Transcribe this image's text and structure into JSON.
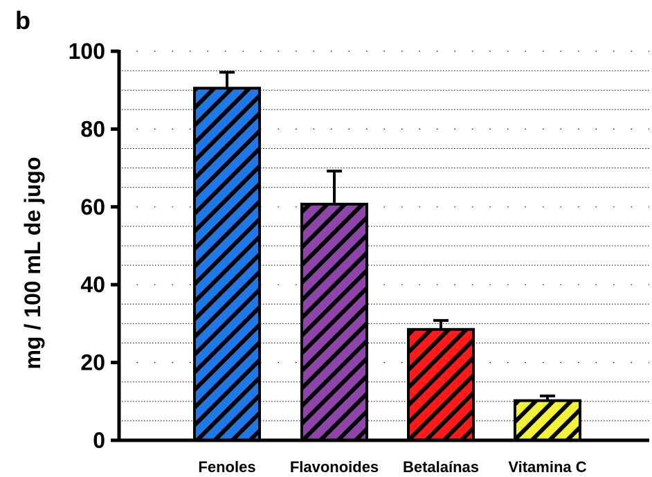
{
  "panel_label": "b",
  "chart_data": {
    "type": "bar",
    "title": "",
    "xlabel": "",
    "ylabel": "mg / 100 mL de jugo",
    "ylim": [
      0,
      100
    ],
    "yticks": [
      0,
      20,
      40,
      60,
      80,
      100
    ],
    "grid": "dotted horizontal",
    "categories": [
      "Fenoles",
      "Flavonoides",
      "Betalaínas",
      "Vitamina C"
    ],
    "values": [
      90.5,
      60.7,
      28.5,
      10.2
    ],
    "error_upper": [
      4.1,
      8.5,
      2.3,
      1.2
    ],
    "colors": [
      "#1E78E6",
      "#8E44A8",
      "#FF1A1A",
      "#F2F23A"
    ],
    "fill_pattern": "diagonal hatch"
  }
}
